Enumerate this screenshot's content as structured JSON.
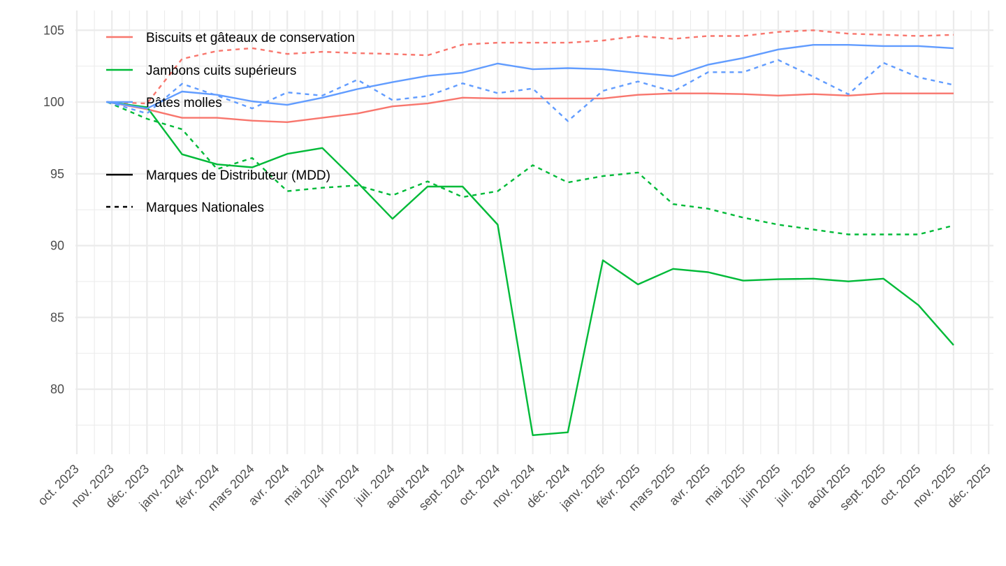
{
  "chart_data": {
    "type": "line",
    "title": "",
    "xlabel": "",
    "ylabel": "",
    "ylim": [
      75.5,
      106.4
    ],
    "yticks": [
      80,
      85,
      90,
      95,
      100,
      105
    ],
    "xticks": [
      "oct. 2023",
      "nov. 2023",
      "déc. 2023",
      "janv. 2024",
      "févr. 2024",
      "mars 2024",
      "avr. 2024",
      "mai 2024",
      "juin 2024",
      "juil. 2024",
      "août 2024",
      "sept. 2024",
      "oct. 2024",
      "nov. 2024",
      "déc. 2024",
      "janv. 2025",
      "févr. 2025",
      "mars 2025",
      "avr. 2025",
      "mai 2025",
      "juin 2025",
      "juil. 2025",
      "août 2025",
      "sept. 2025",
      "oct. 2025",
      "nov. 2025",
      "déc. 2025"
    ],
    "grid": true,
    "legend_position": "top-left",
    "x": [
      "2023-10-27",
      "2023-12-01",
      "2024-01-01",
      "2024-02-01",
      "2024-03-01",
      "2024-04-01",
      "2024-05-01",
      "2024-06-01",
      "2024-07-01",
      "2024-08-01",
      "2024-09-01",
      "2024-10-01",
      "2024-11-01",
      "2024-12-01",
      "2025-01-01",
      "2025-02-01",
      "2025-03-01",
      "2025-04-01",
      "2025-05-01",
      "2025-06-01",
      "2025-07-01",
      "2025-08-01",
      "2025-09-01",
      "2025-10-01",
      "2025-11-01"
    ],
    "color_legend": [
      {
        "name": "Biscuits et gâteaux de conservation",
        "color": "#F8766D"
      },
      {
        "name": "Jambons cuits supérieurs",
        "color": "#00BA38"
      },
      {
        "name": "Pâtes molles",
        "color": "#619CFF"
      }
    ],
    "linetype_legend": [
      {
        "name": "Marques de Distributeur (MDD)",
        "dash": "solid"
      },
      {
        "name": "Marques Nationales",
        "dash": "dashed"
      }
    ],
    "series": [
      {
        "name": "Biscuits et gâteaux de conservation - MDD",
        "color": "#F8766D",
        "dash": "solid",
        "values": [
          100,
          99.5,
          98.9,
          98.9,
          98.7,
          98.6,
          98.9,
          99.2,
          99.7,
          99.9,
          100.3,
          100.25,
          100.25,
          100.25,
          100.25,
          100.5,
          100.6,
          100.6,
          100.55,
          100.45,
          100.55,
          100.45,
          100.6,
          100.6,
          100.6
        ]
      },
      {
        "name": "Biscuits et gâteaux de conservation - Marques Nationales",
        "color": "#F8766D",
        "dash": "dashed",
        "values": [
          100,
          99.9,
          103.0,
          103.55,
          103.75,
          103.35,
          103.5,
          103.4,
          103.35,
          103.25,
          104.0,
          104.13,
          104.13,
          104.13,
          104.28,
          104.6,
          104.4,
          104.6,
          104.6,
          104.88,
          105.0,
          104.76,
          104.68,
          104.6,
          104.68
        ]
      },
      {
        "name": "Jambons cuits supérieurs - MDD",
        "color": "#00BA38",
        "dash": "solid",
        "values": [
          100,
          99.64,
          96.36,
          95.66,
          95.45,
          96.39,
          96.8,
          94.4,
          91.87,
          94.11,
          94.11,
          91.46,
          76.8,
          77.0,
          88.98,
          87.3,
          88.38,
          88.15,
          87.56,
          87.66,
          87.7,
          87.51,
          87.7,
          85.85,
          83.07
        ]
      },
      {
        "name": "Jambons cuits supérieurs - Marques Nationales",
        "color": "#00BA38",
        "dash": "dashed",
        "values": [
          100,
          98.83,
          98.1,
          95.33,
          96.1,
          93.79,
          94.03,
          94.19,
          93.5,
          94.47,
          93.38,
          93.79,
          95.6,
          94.4,
          94.84,
          95.09,
          92.89,
          92.57,
          91.95,
          91.46,
          91.12,
          90.78,
          90.78,
          90.78,
          91.4
        ]
      },
      {
        "name": "Pâtes molles - MDD",
        "color": "#619CFF",
        "dash": "solid",
        "values": [
          100,
          99.55,
          100.73,
          100.5,
          100.05,
          99.8,
          100.3,
          100.9,
          101.38,
          101.82,
          102.05,
          102.68,
          102.28,
          102.36,
          102.28,
          102.03,
          101.8,
          102.6,
          103.06,
          103.66,
          103.98,
          103.98,
          103.9,
          103.9,
          103.74
        ]
      },
      {
        "name": "Pâtes molles - Marques Nationales",
        "color": "#619CFF",
        "dash": "dashed",
        "values": [
          100,
          99.2,
          101.27,
          100.45,
          99.55,
          100.67,
          100.45,
          101.55,
          100.13,
          100.42,
          101.3,
          100.62,
          100.94,
          98.67,
          100.78,
          101.43,
          100.73,
          102.08,
          102.08,
          102.93,
          101.76,
          100.54,
          102.73,
          101.72,
          101.19
        ]
      }
    ]
  }
}
